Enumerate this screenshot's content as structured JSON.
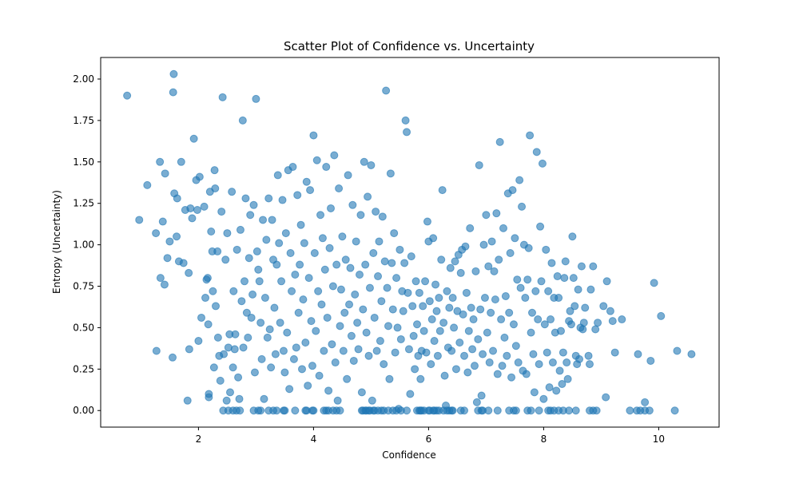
{
  "chart_data": {
    "type": "scatter",
    "title": "Scatter Plot of Confidence vs. Uncertainty",
    "xlabel": "Confidence",
    "ylabel": "Entropy (Uncertainty)",
    "xlim": [
      0.3,
      11.05
    ],
    "ylim": [
      -0.1,
      2.13
    ],
    "xticks": [
      2,
      4,
      6,
      8,
      10
    ],
    "xtick_labels": [
      "2",
      "4",
      "6",
      "8",
      "10"
    ],
    "yticks": [
      0.0,
      0.25,
      0.5,
      0.75,
      1.0,
      1.25,
      1.5,
      1.75,
      2.0
    ],
    "ytick_labels": [
      "0.00",
      "0.25",
      "0.50",
      "0.75",
      "1.00",
      "1.25",
      "1.50",
      "1.75",
      "2.00"
    ],
    "grid": false,
    "marker_color": "#1f77b4",
    "marker_alpha": 0.6,
    "points": [
      [
        0.76,
        1.9
      ],
      [
        0.97,
        1.15
      ],
      [
        1.11,
        1.36
      ],
      [
        1.26,
        1.07
      ],
      [
        1.33,
        1.5
      ],
      [
        1.38,
        1.14
      ],
      [
        1.42,
        1.43
      ],
      [
        1.46,
        0.92
      ],
      [
        1.5,
        1.02
      ],
      [
        1.34,
        0.8
      ],
      [
        1.41,
        0.76
      ],
      [
        1.27,
        0.36
      ],
      [
        1.55,
        0.32
      ],
      [
        1.57,
        2.03
      ],
      [
        1.56,
        1.92
      ],
      [
        1.58,
        1.31
      ],
      [
        1.62,
        1.05
      ],
      [
        1.63,
        1.28
      ],
      [
        1.66,
        0.9
      ],
      [
        1.7,
        1.5
      ],
      [
        1.74,
        0.89
      ],
      [
        1.77,
        1.21
      ],
      [
        1.81,
        0.06
      ],
      [
        1.83,
        0.83
      ],
      [
        1.84,
        0.37
      ],
      [
        1.86,
        1.22
      ],
      [
        1.89,
        1.16
      ],
      [
        1.92,
        1.64
      ],
      [
        1.96,
        1.39
      ],
      [
        1.98,
        1.21
      ],
      [
        2.0,
        0.42
      ],
      [
        2.02,
        1.41
      ],
      [
        2.05,
        0.56
      ],
      [
        2.1,
        1.23
      ],
      [
        2.12,
        0.68
      ],
      [
        2.14,
        0.79
      ],
      [
        2.16,
        0.8
      ],
      [
        2.17,
        0.52
      ],
      [
        2.18,
        0.1
      ],
      [
        2.18,
        0.08
      ],
      [
        2.2,
        1.32
      ],
      [
        2.22,
        1.08
      ],
      [
        2.24,
        0.96
      ],
      [
        2.25,
        0.72
      ],
      [
        2.27,
        0.26
      ],
      [
        2.28,
        1.45
      ],
      [
        2.29,
        1.34
      ],
      [
        2.3,
        0.63
      ],
      [
        2.33,
        0.96
      ],
      [
        2.34,
        0.44
      ],
      [
        2.36,
        0.33
      ],
      [
        2.38,
        0.18
      ],
      [
        2.4,
        1.2
      ],
      [
        2.42,
        1.89
      ],
      [
        2.44,
        0.34
      ],
      [
        2.47,
        0.91
      ],
      [
        2.49,
        0.06
      ],
      [
        2.5,
        1.07
      ],
      [
        2.52,
        0.38
      ],
      [
        2.54,
        0.46
      ],
      [
        2.55,
        0.11
      ],
      [
        2.58,
        1.32
      ],
      [
        2.6,
        0.26
      ],
      [
        2.61,
        0.72
      ],
      [
        2.63,
        0.37
      ],
      [
        2.64,
        0.46
      ],
      [
        2.67,
        0.97
      ],
      [
        2.69,
        0.2
      ],
      [
        2.71,
        0.07
      ],
      [
        2.73,
        1.09
      ],
      [
        2.75,
        0.66
      ],
      [
        2.77,
        1.75
      ],
      [
        2.78,
        0.38
      ],
      [
        2.8,
        0.78
      ],
      [
        2.82,
        1.28
      ],
      [
        2.84,
        0.59
      ],
      [
        2.86,
        0.44
      ],
      [
        2.88,
        0.92
      ],
      [
        2.9,
        1.18
      ],
      [
        2.92,
        0.56
      ],
      [
        2.94,
        0.7
      ],
      [
        2.96,
        1.24
      ],
      [
        2.98,
        0.23
      ],
      [
        3.0,
        1.88
      ],
      [
        3.02,
        0.96
      ],
      [
        3.04,
        0.85
      ],
      [
        3.06,
        0.78
      ],
      [
        3.08,
        0.53
      ],
      [
        3.1,
        0.31
      ],
      [
        3.12,
        1.15
      ],
      [
        3.14,
        0.07
      ],
      [
        3.16,
        0.68
      ],
      [
        3.18,
        1.03
      ],
      [
        3.2,
        0.44
      ],
      [
        3.22,
        1.28
      ],
      [
        3.24,
        0.49
      ],
      [
        3.26,
        0.26
      ],
      [
        3.28,
        1.15
      ],
      [
        3.3,
        0.91
      ],
      [
        3.32,
        0.62
      ],
      [
        3.34,
        0.34
      ],
      [
        3.36,
        0.88
      ],
      [
        3.38,
        1.42
      ],
      [
        3.4,
        1.01
      ],
      [
        3.42,
        0.53
      ],
      [
        3.44,
        0.78
      ],
      [
        3.46,
        1.27
      ],
      [
        3.48,
        0.36
      ],
      [
        3.5,
        0.23
      ],
      [
        3.52,
        1.07
      ],
      [
        3.54,
        0.47
      ],
      [
        3.56,
        1.45
      ],
      [
        3.58,
        0.13
      ],
      [
        3.6,
        0.95
      ],
      [
        3.62,
        0.72
      ],
      [
        3.64,
        1.47
      ],
      [
        3.66,
        0.31
      ],
      [
        3.68,
        0.82
      ],
      [
        3.7,
        0.38
      ],
      [
        3.72,
        1.3
      ],
      [
        3.74,
        0.59
      ],
      [
        3.76,
        0.88
      ],
      [
        3.78,
        1.12
      ],
      [
        3.8,
        0.25
      ],
      [
        3.82,
        0.67
      ],
      [
        3.84,
        1.01
      ],
      [
        3.86,
        0.41
      ],
      [
        3.88,
        1.38
      ],
      [
        3.9,
        0.15
      ],
      [
        3.92,
        0.8
      ],
      [
        3.94,
        1.33
      ],
      [
        3.96,
        0.54
      ],
      [
        3.98,
        0.27
      ],
      [
        4.0,
        1.66
      ],
      [
        4.02,
        0.95
      ],
      [
        4.04,
        0.48
      ],
      [
        4.06,
        1.51
      ],
      [
        4.08,
        0.72
      ],
      [
        4.1,
        0.21
      ],
      [
        4.12,
        1.18
      ],
      [
        4.14,
        0.64
      ],
      [
        4.16,
        1.04
      ],
      [
        4.18,
        0.36
      ],
      [
        4.2,
        0.85
      ],
      [
        4.22,
        1.47
      ],
      [
        4.24,
        0.56
      ],
      [
        4.26,
        0.12
      ],
      [
        4.28,
        0.98
      ],
      [
        4.3,
        1.22
      ],
      [
        4.32,
        0.4
      ],
      [
        4.34,
        0.75
      ],
      [
        4.36,
        1.54
      ],
      [
        4.38,
        0.29
      ],
      [
        4.4,
        0.88
      ],
      [
        4.42,
        0.06
      ],
      [
        4.44,
        1.34
      ],
      [
        4.46,
        0.51
      ],
      [
        4.48,
        0.73
      ],
      [
        4.5,
        1.05
      ],
      [
        4.52,
        0.36
      ],
      [
        4.54,
        0.59
      ],
      [
        4.56,
        0.91
      ],
      [
        4.58,
        0.19
      ],
      [
        4.6,
        1.42
      ],
      [
        4.62,
        0.64
      ],
      [
        4.64,
        0.86
      ],
      [
        4.66,
        0.45
      ],
      [
        4.68,
        1.24
      ],
      [
        4.7,
        0.3
      ],
      [
        4.72,
        0.7
      ],
      [
        4.74,
        1.02
      ],
      [
        4.76,
        0.53
      ],
      [
        4.78,
        0.37
      ],
      [
        4.8,
        0.82
      ],
      [
        4.82,
        1.18
      ],
      [
        4.84,
        0.11
      ],
      [
        4.86,
        0.61
      ],
      [
        4.88,
        1.5
      ],
      [
        4.9,
        0.88
      ],
      [
        4.92,
        0.47
      ],
      [
        4.94,
        1.29
      ],
      [
        4.96,
        0.33
      ],
      [
        4.98,
        0.74
      ],
      [
        5.0,
        1.48
      ],
      [
        5.02,
        0.06
      ],
      [
        5.04,
        0.95
      ],
      [
        5.06,
        0.56
      ],
      [
        5.08,
        1.2
      ],
      [
        5.1,
        0.36
      ],
      [
        5.12,
        0.81
      ],
      [
        5.14,
        1.02
      ],
      [
        5.16,
        0.42
      ],
      [
        5.18,
        0.66
      ],
      [
        5.2,
        1.17
      ],
      [
        5.22,
        0.28
      ],
      [
        5.24,
        0.9
      ],
      [
        5.26,
        1.93
      ],
      [
        5.28,
        0.74
      ],
      [
        5.3,
        0.51
      ],
      [
        5.32,
        0.19
      ],
      [
        5.34,
        1.43
      ],
      [
        5.36,
        0.89
      ],
      [
        5.38,
        0.61
      ],
      [
        5.4,
        1.07
      ],
      [
        5.42,
        0.35
      ],
      [
        5.44,
        0.8
      ],
      [
        5.46,
        0.5
      ],
      [
        5.48,
        0.01
      ],
      [
        5.5,
        0.97
      ],
      [
        5.52,
        0.43
      ],
      [
        5.54,
        0.72
      ],
      [
        5.56,
        0.6
      ],
      [
        5.58,
        0.89
      ],
      [
        5.6,
        1.75
      ],
      [
        5.62,
        1.68
      ],
      [
        5.64,
        0.71
      ],
      [
        5.66,
        0.37
      ],
      [
        5.68,
        0.1
      ],
      [
        5.7,
        0.93
      ],
      [
        5.72,
        0.63
      ],
      [
        5.74,
        0.45
      ],
      [
        5.76,
        0.25
      ],
      [
        5.78,
        0.78
      ],
      [
        5.8,
        0.52
      ],
      [
        5.82,
        0.33
      ],
      [
        5.84,
        0.71
      ],
      [
        5.86,
        0.19
      ],
      [
        5.88,
        0.36
      ],
      [
        5.9,
        0.63
      ],
      [
        5.92,
        0.48
      ],
      [
        5.94,
        0.78
      ],
      [
        5.96,
        0.35
      ],
      [
        5.98,
        1.14
      ],
      [
        6.0,
        1.02
      ],
      [
        6.02,
        0.66
      ],
      [
        6.04,
        0.28
      ],
      [
        6.06,
        0.55
      ],
      [
        6.08,
        1.04
      ],
      [
        6.1,
        0.42
      ],
      [
        6.12,
        0.76
      ],
      [
        6.14,
        0.6
      ],
      [
        6.16,
        0.33
      ],
      [
        6.18,
        0.68
      ],
      [
        6.2,
        0.48
      ],
      [
        6.22,
        0.91
      ],
      [
        6.24,
        1.33
      ],
      [
        6.26,
        0.53
      ],
      [
        6.28,
        0.21
      ],
      [
        6.3,
        0.03
      ],
      [
        6.32,
        0.72
      ],
      [
        6.34,
        0.38
      ],
      [
        6.36,
        0.62
      ],
      [
        6.38,
        0.86
      ],
      [
        6.4,
        0.36
      ],
      [
        6.42,
        0.68
      ],
      [
        6.44,
        0.5
      ],
      [
        6.46,
        0.9
      ],
      [
        6.48,
        0.25
      ],
      [
        6.5,
        0.6
      ],
      [
        6.52,
        0.94
      ],
      [
        6.54,
        0.41
      ],
      [
        6.56,
        0.83
      ],
      [
        6.58,
        0.97
      ],
      [
        6.6,
        0.58
      ],
      [
        6.62,
        0.33
      ],
      [
        6.64,
        0.99
      ],
      [
        6.66,
        0.71
      ],
      [
        6.68,
        0.23
      ],
      [
        6.7,
        0.48
      ],
      [
        6.72,
        1.1
      ],
      [
        6.74,
        0.62
      ],
      [
        6.76,
        0.37
      ],
      [
        6.78,
        0.55
      ],
      [
        6.8,
        0.27
      ],
      [
        6.82,
        0.84
      ],
      [
        6.84,
        0.05
      ],
      [
        6.86,
        0.43
      ],
      [
        6.88,
        1.48
      ],
      [
        6.9,
        0.61
      ],
      [
        6.92,
        0.09
      ],
      [
        6.94,
        0.34
      ],
      [
        6.96,
        1.0
      ],
      [
        6.98,
        0.68
      ],
      [
        7.0,
        1.18
      ],
      [
        7.02,
        0.47
      ],
      [
        7.04,
        0.87
      ],
      [
        7.06,
        0.29
      ],
      [
        7.08,
        0.59
      ],
      [
        7.1,
        1.02
      ],
      [
        7.12,
        0.36
      ],
      [
        7.14,
        0.84
      ],
      [
        7.16,
        0.67
      ],
      [
        7.18,
        1.19
      ],
      [
        7.2,
        0.22
      ],
      [
        7.22,
        0.91
      ],
      [
        7.24,
        1.62
      ],
      [
        7.26,
        0.55
      ],
      [
        7.28,
        0.27
      ],
      [
        7.3,
        1.1
      ],
      [
        7.32,
        0.44
      ],
      [
        7.34,
        0.69
      ],
      [
        7.36,
        0.33
      ],
      [
        7.38,
        1.31
      ],
      [
        7.4,
        0.59
      ],
      [
        7.42,
        0.95
      ],
      [
        7.44,
        0.2
      ],
      [
        7.46,
        1.33
      ],
      [
        7.48,
        0.52
      ],
      [
        7.5,
        1.04
      ],
      [
        7.52,
        0.39
      ],
      [
        7.54,
        0.79
      ],
      [
        7.56,
        0.29
      ],
      [
        7.58,
        1.39
      ],
      [
        7.6,
        0.74
      ],
      [
        7.62,
        1.23
      ],
      [
        7.64,
        0.24
      ],
      [
        7.66,
        1.0
      ],
      [
        7.68,
        0.68
      ],
      [
        7.7,
        0.22
      ],
      [
        7.72,
        0.79
      ],
      [
        7.74,
        0.98
      ],
      [
        7.76,
        1.66
      ],
      [
        7.78,
        0.47
      ],
      [
        7.8,
        0.59
      ],
      [
        7.82,
        0.34
      ],
      [
        7.84,
        0.11
      ],
      [
        7.86,
        0.72
      ],
      [
        7.88,
        1.56
      ],
      [
        7.9,
        0.55
      ],
      [
        7.92,
        0.28
      ],
      [
        7.94,
        1.11
      ],
      [
        7.96,
        0.78
      ],
      [
        7.98,
        1.49
      ],
      [
        8.0,
        0.07
      ],
      [
        8.02,
        0.52
      ],
      [
        8.04,
        0.97
      ],
      [
        8.06,
        0.35
      ],
      [
        8.08,
        0.72
      ],
      [
        8.1,
        0.14
      ],
      [
        8.12,
        0.55
      ],
      [
        8.14,
        0.89
      ],
      [
        8.16,
        0.29
      ],
      [
        8.18,
        0.68
      ],
      [
        8.2,
        0.47
      ],
      [
        8.22,
        0.12
      ],
      [
        8.24,
        0.81
      ],
      [
        8.26,
        0.68
      ],
      [
        8.28,
        0.24
      ],
      [
        8.3,
        0.48
      ],
      [
        8.32,
        0.16
      ],
      [
        8.34,
        0.35
      ],
      [
        8.36,
        0.8
      ],
      [
        8.38,
        0.9
      ],
      [
        8.4,
        0.29
      ],
      [
        8.42,
        0.19
      ],
      [
        8.44,
        0.54
      ],
      [
        8.46,
        0.6
      ],
      [
        8.48,
        0.52
      ],
      [
        8.5,
        1.05
      ],
      [
        8.52,
        0.8
      ],
      [
        8.54,
        0.63
      ],
      [
        8.56,
        0.33
      ],
      [
        8.58,
        0.28
      ],
      [
        8.6,
        0.73
      ],
      [
        8.62,
        0.31
      ],
      [
        8.64,
        0.5
      ],
      [
        8.66,
        0.87
      ],
      [
        8.68,
        0.49
      ],
      [
        8.7,
        0.53
      ],
      [
        8.72,
        0.62
      ],
      [
        8.78,
        0.33
      ],
      [
        8.8,
        0.28
      ],
      [
        8.82,
        0.73
      ],
      [
        8.86,
        0.87
      ],
      [
        8.9,
        0.49
      ],
      [
        8.94,
        0.53
      ],
      [
        9.04,
        0.63
      ],
      [
        9.08,
        0.08
      ],
      [
        9.1,
        0.78
      ],
      [
        9.16,
        0.6
      ],
      [
        9.2,
        0.54
      ],
      [
        9.24,
        0.35
      ],
      [
        9.36,
        0.55
      ],
      [
        9.64,
        0.34
      ],
      [
        9.76,
        0.05
      ],
      [
        9.86,
        0.3
      ],
      [
        9.92,
        0.77
      ],
      [
        10.04,
        0.57
      ],
      [
        10.32,
        0.36
      ],
      [
        10.57,
        0.34
      ]
    ],
    "zero_points": [
      2.43,
      2.52,
      2.6,
      2.66,
      2.72,
      2.96,
      3.04,
      3.08,
      3.22,
      3.3,
      3.36,
      3.48,
      3.5,
      3.68,
      3.86,
      3.88,
      3.98,
      4.0,
      4.18,
      4.22,
      4.26,
      4.34,
      4.4,
      4.46,
      4.84,
      4.86,
      4.9,
      4.92,
      4.96,
      4.98,
      5.04,
      5.06,
      5.12,
      5.18,
      5.22,
      5.3,
      5.38,
      5.44,
      5.52,
      5.62,
      5.8,
      5.84,
      5.86,
      5.88,
      5.92,
      6.0,
      6.02,
      6.08,
      6.1,
      6.14,
      6.18,
      6.26,
      6.32,
      6.36,
      6.4,
      6.42,
      6.56,
      6.62,
      6.86,
      6.92,
      6.94,
      7.04,
      7.2,
      7.4,
      7.48,
      7.52,
      7.72,
      7.78,
      7.92,
      8.08,
      8.12,
      8.18,
      8.26,
      8.34,
      8.44,
      8.56,
      8.8,
      8.86,
      8.92,
      9.5,
      9.62,
      9.68,
      9.76,
      9.84,
      10.28
    ]
  }
}
